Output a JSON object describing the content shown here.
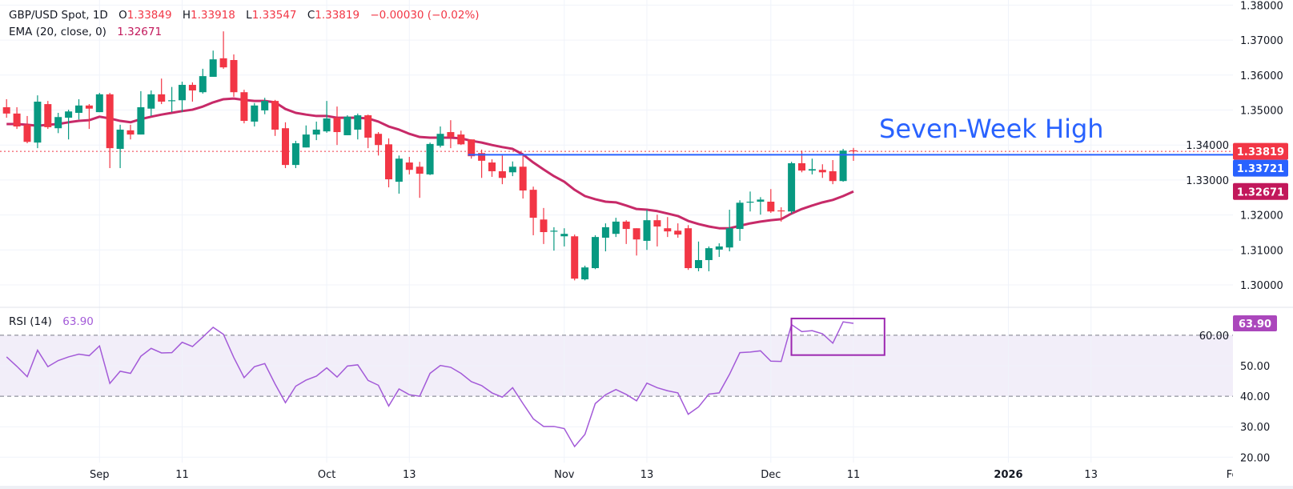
{
  "legend": {
    "symbol": "GBP/USD Spot, 1D",
    "o_label": "O",
    "open": "1.33849",
    "h_label": "H",
    "high": "1.33918",
    "l_label": "L",
    "low": "1.33547",
    "c_label": "C",
    "close": "1.33819",
    "change": "−0.00030 (−0.02%)",
    "ema_label": "EMA (20, close, 0)",
    "ema_value": "1.32671",
    "rsi_label": "RSI (14)",
    "rsi_value": "63.90"
  },
  "colors": {
    "up": "#089981",
    "down": "#f23645",
    "ema": "#c2185b",
    "rsi": "#a35ad8",
    "annotation": "#2962ff",
    "rsi_box": "#9c27b0",
    "grid": "#f0f3fa"
  },
  "chart_data": [
    {
      "type": "candlestick",
      "title": "GBP/USD Spot, 1D",
      "annotation": "Seven-Week High",
      "annotation_level": 1.33721,
      "annotation_start": "2025-10-21",
      "last_price": 1.33819,
      "ylim": [
        1.2975,
        1.381
      ],
      "y_ticks": [
        "1.30000",
        "1.31000",
        "1.32000",
        "1.33000",
        "1.34000",
        "1.35000",
        "1.36000",
        "1.37000",
        "1.38000"
      ],
      "price_labels": [
        {
          "text": "1.33819",
          "value": 1.33819,
          "color": "#f23645"
        },
        {
          "text": "1.33721",
          "value": 1.33721,
          "color": "#2962ff"
        },
        {
          "text": "1.32671",
          "value": 1.32671,
          "color": "#c2185b"
        }
      ],
      "x_ticks": [
        {
          "label": "Sep",
          "date": "2025-09-01",
          "bold": false
        },
        {
          "label": "11",
          "date": "2025-09-11",
          "bold": false
        },
        {
          "label": "Oct",
          "date": "2025-10-01",
          "bold": false
        },
        {
          "label": "13",
          "date": "2025-10-13",
          "bold": false
        },
        {
          "label": "Nov",
          "date": "2025-11-03",
          "bold": false
        },
        {
          "label": "13",
          "date": "2025-11-13",
          "bold": false
        },
        {
          "label": "Dec",
          "date": "2025-12-01",
          "bold": false
        },
        {
          "label": "11",
          "date": "2025-12-11",
          "bold": false
        },
        {
          "label": "2026",
          "date": "2026-01-01",
          "bold": true
        },
        {
          "label": "13",
          "date": "2026-01-13",
          "bold": false
        },
        {
          "label": "Feb",
          "date": "2026-02-02",
          "bold": false
        }
      ],
      "dates": [
        "2025-08-19",
        "2025-08-20",
        "2025-08-21",
        "2025-08-22",
        "2025-08-25",
        "2025-08-26",
        "2025-08-27",
        "2025-08-28",
        "2025-08-29",
        "2025-09-01",
        "2025-09-02",
        "2025-09-03",
        "2025-09-04",
        "2025-09-05",
        "2025-09-08",
        "2025-09-09",
        "2025-09-10",
        "2025-09-11",
        "2025-09-12",
        "2025-09-15",
        "2025-09-16",
        "2025-09-17",
        "2025-09-18",
        "2025-09-19",
        "2025-09-22",
        "2025-09-23",
        "2025-09-24",
        "2025-09-25",
        "2025-09-26",
        "2025-09-29",
        "2025-09-30",
        "2025-10-01",
        "2025-10-02",
        "2025-10-03",
        "2025-10-06",
        "2025-10-07",
        "2025-10-08",
        "2025-10-09",
        "2025-10-10",
        "2025-10-13",
        "2025-10-14",
        "2025-10-15",
        "2025-10-16",
        "2025-10-17",
        "2025-10-20",
        "2025-10-21",
        "2025-10-22",
        "2025-10-23",
        "2025-10-24",
        "2025-10-27",
        "2025-10-28",
        "2025-10-29",
        "2025-10-30",
        "2025-10-31",
        "2025-11-03",
        "2025-11-04",
        "2025-11-05",
        "2025-11-06",
        "2025-11-07",
        "2025-11-10",
        "2025-11-11",
        "2025-11-12",
        "2025-11-13",
        "2025-11-14",
        "2025-11-17",
        "2025-11-18",
        "2025-11-19",
        "2025-11-20",
        "2025-11-21",
        "2025-11-24",
        "2025-11-25",
        "2025-11-26",
        "2025-11-27",
        "2025-11-28",
        "2025-12-01",
        "2025-12-02",
        "2025-12-03",
        "2025-12-04",
        "2025-12-05",
        "2025-12-08",
        "2025-12-09",
        "2025-12-10",
        "2025-12-11"
      ],
      "ohlc": [
        [
          1.3508,
          1.3531,
          1.3478,
          1.349
        ],
        [
          1.349,
          1.3508,
          1.3446,
          1.3453
        ],
        [
          1.3458,
          1.3483,
          1.3405,
          1.3409
        ],
        [
          1.3407,
          1.3542,
          1.3391,
          1.3524
        ],
        [
          1.3517,
          1.3526,
          1.3446,
          1.3451
        ],
        [
          1.3448,
          1.3492,
          1.3434,
          1.348
        ],
        [
          1.3478,
          1.3501,
          1.3416,
          1.3496
        ],
        [
          1.3492,
          1.3531,
          1.3473,
          1.3513
        ],
        [
          1.3513,
          1.3517,
          1.3446,
          1.3504
        ],
        [
          1.3494,
          1.3549,
          1.3494,
          1.3545
        ],
        [
          1.3545,
          1.3549,
          1.3334,
          1.3391
        ],
        [
          1.3389,
          1.3458,
          1.3334,
          1.3444
        ],
        [
          1.3442,
          1.3458,
          1.3416,
          1.343
        ],
        [
          1.343,
          1.3554,
          1.343,
          1.3508
        ],
        [
          1.3504,
          1.3556,
          1.3483,
          1.3545
        ],
        [
          1.3545,
          1.359,
          1.3517,
          1.3524
        ],
        [
          1.3526,
          1.3566,
          1.3494,
          1.3528
        ],
        [
          1.3528,
          1.3581,
          1.3494,
          1.3572
        ],
        [
          1.3572,
          1.3579,
          1.3524,
          1.3556
        ],
        [
          1.3551,
          1.3618,
          1.3547,
          1.3597
        ],
        [
          1.3595,
          1.367,
          1.3595,
          1.3645
        ],
        [
          1.3648,
          1.3725,
          1.3618,
          1.3622
        ],
        [
          1.3643,
          1.3659,
          1.3538,
          1.3551
        ],
        [
          1.3551,
          1.3558,
          1.3462,
          1.3469
        ],
        [
          1.3467,
          1.352,
          1.3453,
          1.3513
        ],
        [
          1.3499,
          1.3535,
          1.3488,
          1.3526
        ],
        [
          1.3526,
          1.3529,
          1.3426,
          1.3444
        ],
        [
          1.3448,
          1.3465,
          1.3334,
          1.3343
        ],
        [
          1.3343,
          1.3412,
          1.3334,
          1.3405
        ],
        [
          1.3393,
          1.3456,
          1.3393,
          1.343
        ],
        [
          1.343,
          1.3467,
          1.3414,
          1.3444
        ],
        [
          1.3439,
          1.3526,
          1.3435,
          1.3476
        ],
        [
          1.3478,
          1.351,
          1.34,
          1.3437
        ],
        [
          1.3428,
          1.3485,
          1.3428,
          1.3481
        ],
        [
          1.3444,
          1.349,
          1.3416,
          1.3485
        ],
        [
          1.3485,
          1.3487,
          1.3391,
          1.3421
        ],
        [
          1.3432,
          1.3437,
          1.337,
          1.34
        ],
        [
          1.3402,
          1.3419,
          1.3279,
          1.3302
        ],
        [
          1.3295,
          1.337,
          1.3261,
          1.3361
        ],
        [
          1.335,
          1.3366,
          1.3316,
          1.3329
        ],
        [
          1.3338,
          1.3352,
          1.3249,
          1.3318
        ],
        [
          1.3316,
          1.3407,
          1.3314,
          1.3403
        ],
        [
          1.3398,
          1.3453,
          1.3393,
          1.3432
        ],
        [
          1.3437,
          1.3471,
          1.3391,
          1.3423
        ],
        [
          1.343,
          1.3441,
          1.34,
          1.3402
        ],
        [
          1.3416,
          1.3416,
          1.3361,
          1.3368
        ],
        [
          1.3377,
          1.3387,
          1.3306,
          1.3355
        ],
        [
          1.335,
          1.3359,
          1.3309,
          1.3325
        ],
        [
          1.3325,
          1.337,
          1.3288,
          1.3306
        ],
        [
          1.3322,
          1.3353,
          1.3311,
          1.3338
        ],
        [
          1.3338,
          1.337,
          1.3247,
          1.327
        ],
        [
          1.3272,
          1.3281,
          1.3142,
          1.3192
        ],
        [
          1.3187,
          1.322,
          1.3117,
          1.3151
        ],
        [
          1.3153,
          1.3165,
          1.3098,
          1.3155
        ],
        [
          1.3139,
          1.3162,
          1.311,
          1.3146
        ],
        [
          1.3139,
          1.3144,
          1.3013,
          1.3018
        ],
        [
          1.3016,
          1.3055,
          1.3013,
          1.305
        ],
        [
          1.3048,
          1.3142,
          1.3045,
          1.3137
        ],
        [
          1.3135,
          1.3176,
          1.3096,
          1.3165
        ],
        [
          1.3146,
          1.3192,
          1.3137,
          1.3181
        ],
        [
          1.3181,
          1.3185,
          1.3117,
          1.316
        ],
        [
          1.3162,
          1.3162,
          1.3084,
          1.313
        ],
        [
          1.3126,
          1.3215,
          1.31,
          1.3185
        ],
        [
          1.3185,
          1.3201,
          1.311,
          1.3167
        ],
        [
          1.3162,
          1.3194,
          1.3137,
          1.3153
        ],
        [
          1.3155,
          1.3176,
          1.3135,
          1.3144
        ],
        [
          1.3162,
          1.3171,
          1.3043,
          1.3048
        ],
        [
          1.3048,
          1.3124,
          1.3039,
          1.3071
        ],
        [
          1.3071,
          1.311,
          1.3039,
          1.3105
        ],
        [
          1.3101,
          1.3119,
          1.308,
          1.311
        ],
        [
          1.3107,
          1.3215,
          1.3096,
          1.3162
        ],
        [
          1.316,
          1.3242,
          1.3126,
          1.3235
        ],
        [
          1.3236,
          1.3267,
          1.321,
          1.3238
        ],
        [
          1.3238,
          1.3251,
          1.3201,
          1.3244
        ],
        [
          1.3238,
          1.3274,
          1.3206,
          1.321
        ],
        [
          1.3213,
          1.3222,
          1.3181,
          1.3212
        ],
        [
          1.321,
          1.3352,
          1.3203,
          1.3348
        ],
        [
          1.3348,
          1.3384,
          1.3322,
          1.3327
        ],
        [
          1.3327,
          1.3361,
          1.3316,
          1.3331
        ],
        [
          1.3329,
          1.3345,
          1.3306,
          1.3322
        ],
        [
          1.3325,
          1.3357,
          1.3288,
          1.3297
        ],
        [
          1.3297,
          1.3389,
          1.3295,
          1.3384
        ],
        [
          1.33849,
          1.33918,
          1.33547,
          1.33819
        ]
      ],
      "ema20": [
        1.346,
        1.346,
        1.3458,
        1.3455,
        1.3458,
        1.346,
        1.3465,
        1.3469,
        1.3471,
        1.3481,
        1.3476,
        1.3469,
        1.3465,
        1.3474,
        1.3481,
        1.3487,
        1.3492,
        1.3497,
        1.3501,
        1.351,
        1.3522,
        1.3531,
        1.3533,
        1.3529,
        1.3526,
        1.3526,
        1.3522,
        1.3503,
        1.3492,
        1.3487,
        1.3483,
        1.3483,
        1.3478,
        1.3478,
        1.3478,
        1.3476,
        1.3467,
        1.3453,
        1.3444,
        1.3432,
        1.3423,
        1.3421,
        1.3421,
        1.3421,
        1.3419,
        1.3412,
        1.3407,
        1.34,
        1.3394,
        1.3389,
        1.3373,
        1.335,
        1.333,
        1.3311,
        1.3295,
        1.3272,
        1.3254,
        1.3245,
        1.3238,
        1.3236,
        1.3227,
        1.3217,
        1.3215,
        1.3211,
        1.3204,
        1.3197,
        1.3183,
        1.3174,
        1.3167,
        1.3162,
        1.3162,
        1.3169,
        1.3176,
        1.3181,
        1.3185,
        1.3188,
        1.3204,
        1.3217,
        1.3227,
        1.3236,
        1.3243,
        1.3254,
        1.32671
      ]
    },
    {
      "type": "line",
      "title": "RSI (14)",
      "ylim": [
        17,
        68
      ],
      "y_ticks": [
        "20.00",
        "30.00",
        "40.00",
        "50.00",
        "60.00"
      ],
      "bands": [
        40,
        60
      ],
      "last_label": {
        "text": "63.90",
        "value": 63.9,
        "color": "#ab47bc"
      },
      "highlight_box": {
        "from": "2025-12-04",
        "to": "2025-12-15",
        "rsi_range": [
          53.5,
          65.5
        ]
      },
      "values": [
        52.9,
        49.8,
        46.4,
        55.1,
        49.7,
        51.7,
        52.9,
        53.8,
        53.3,
        56.5,
        44.2,
        48.2,
        47.5,
        53.1,
        55.7,
        54.2,
        54.3,
        57.7,
        56.3,
        59.4,
        62.6,
        60.3,
        52.7,
        46.1,
        49.7,
        50.7,
        44.0,
        37.9,
        43.3,
        45.3,
        46.6,
        49.3,
        46.3,
        49.9,
        50.3,
        45.2,
        43.6,
        36.8,
        42.4,
        40.5,
        40.0,
        47.5,
        50.1,
        49.5,
        47.5,
        44.8,
        43.5,
        41.1,
        39.7,
        42.8,
        37.6,
        32.6,
        30.1,
        30.1,
        29.4,
        23.5,
        27.5,
        37.6,
        40.5,
        42.2,
        40.6,
        38.5,
        44.3,
        42.8,
        41.8,
        41.1,
        34.1,
        36.5,
        40.7,
        41.1,
        47.2,
        54.3,
        54.5,
        54.9,
        51.5,
        51.4,
        63.5,
        61.2,
        61.5,
        60.5,
        57.4,
        64.4,
        63.9
      ]
    }
  ]
}
